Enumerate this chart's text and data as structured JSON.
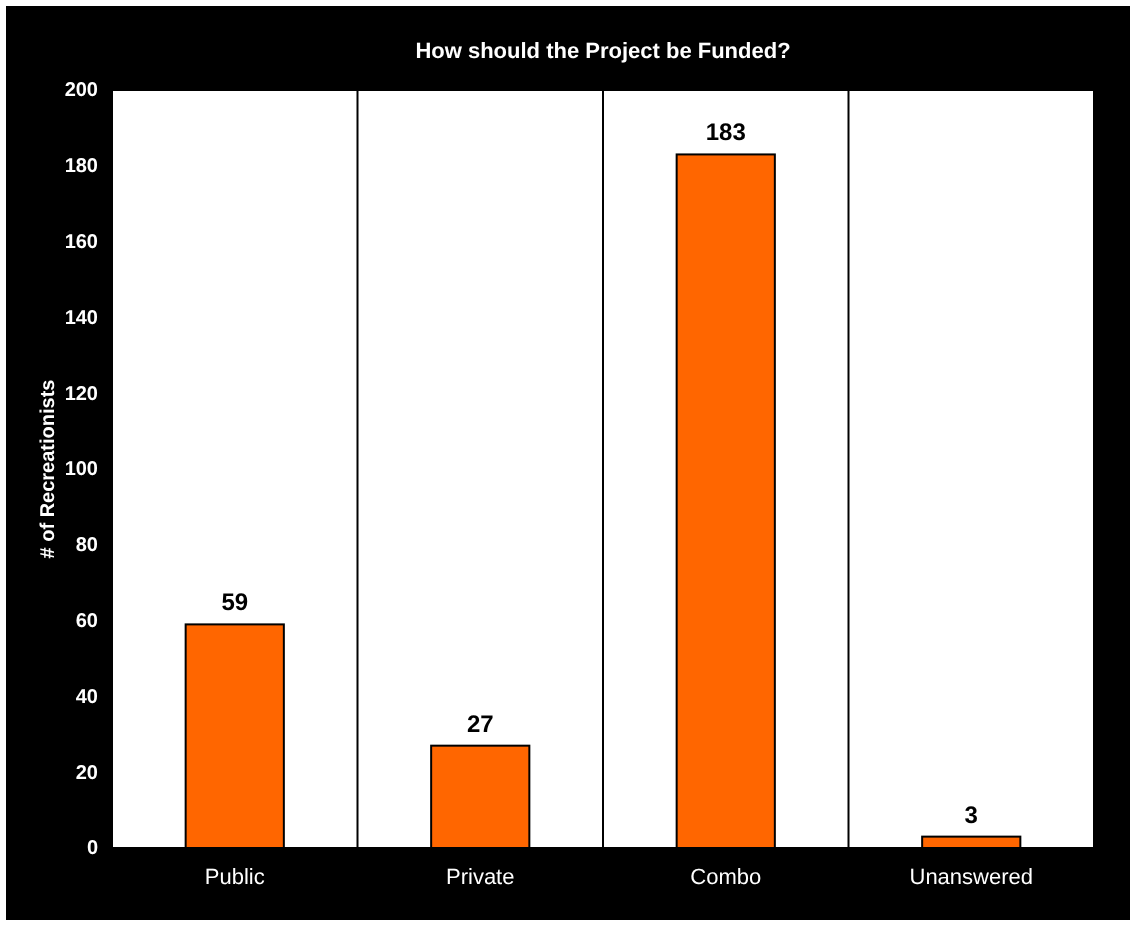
{
  "chart_data": {
    "type": "bar",
    "title": "How should the Project be Funded?",
    "ylabel": "# of Recreationists",
    "categories": [
      "Public",
      "Private",
      "Combo",
      "Unanswered"
    ],
    "values": [
      59,
      27,
      183,
      3
    ],
    "color": "#ff6600",
    "ylim": [
      0,
      200
    ],
    "yticks": [
      0,
      20,
      40,
      60,
      80,
      100,
      120,
      140,
      160,
      180,
      200
    ],
    "grid": "x",
    "data_labels": true
  }
}
